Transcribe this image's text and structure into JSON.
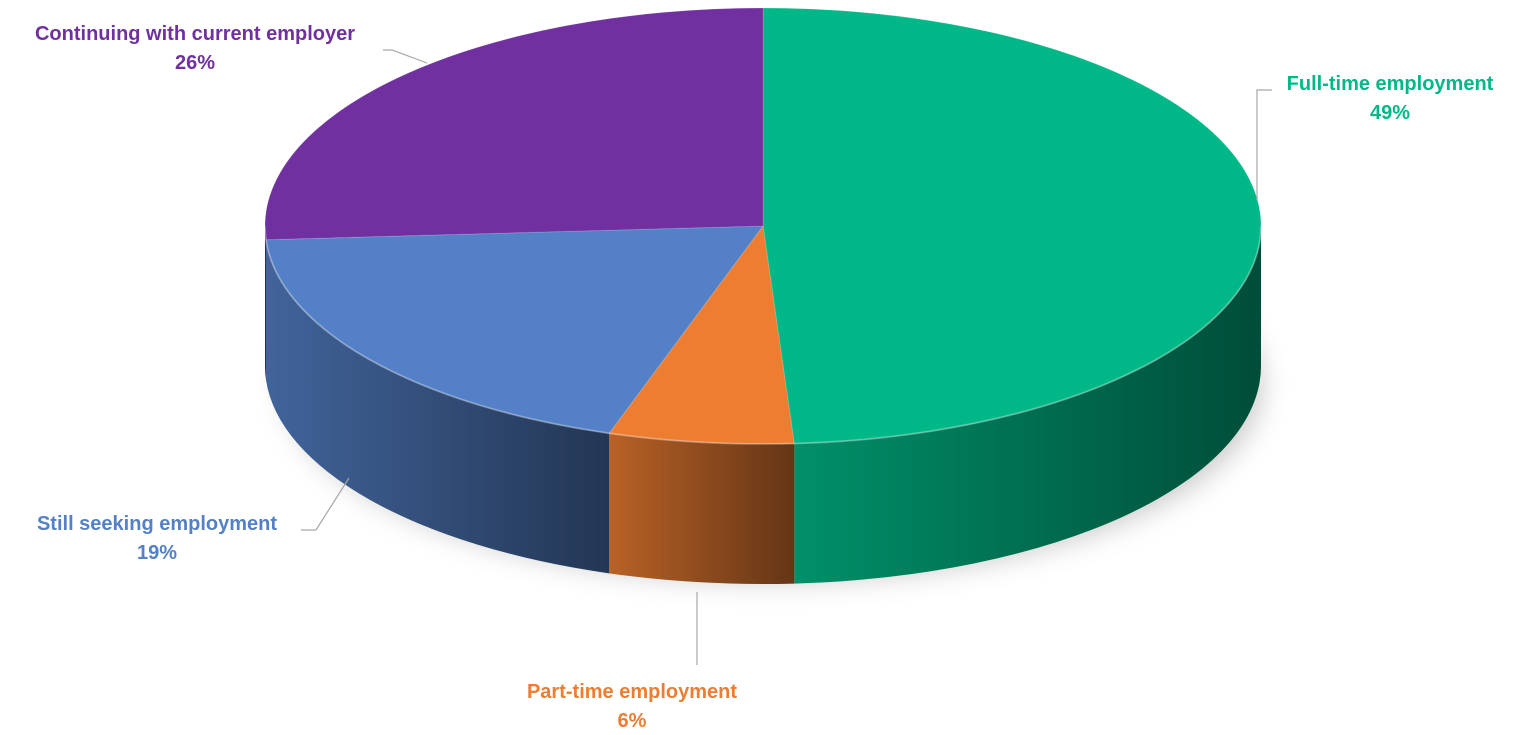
{
  "chart_data": {
    "type": "pie",
    "style": "3d",
    "title": "",
    "slices": [
      {
        "name": "Full-time employment",
        "value": 49,
        "label": "49%",
        "color": "#00B887"
      },
      {
        "name": "Part-time employment",
        "value": 6,
        "label": "6%",
        "color": "#ED7D31"
      },
      {
        "name": "Still seeking employment",
        "value": 19,
        "label": "19%",
        "color": "#5380C7"
      },
      {
        "name": "Continuing with current employer",
        "value": 26,
        "label": "26%",
        "color": "#7030A0"
      }
    ]
  }
}
